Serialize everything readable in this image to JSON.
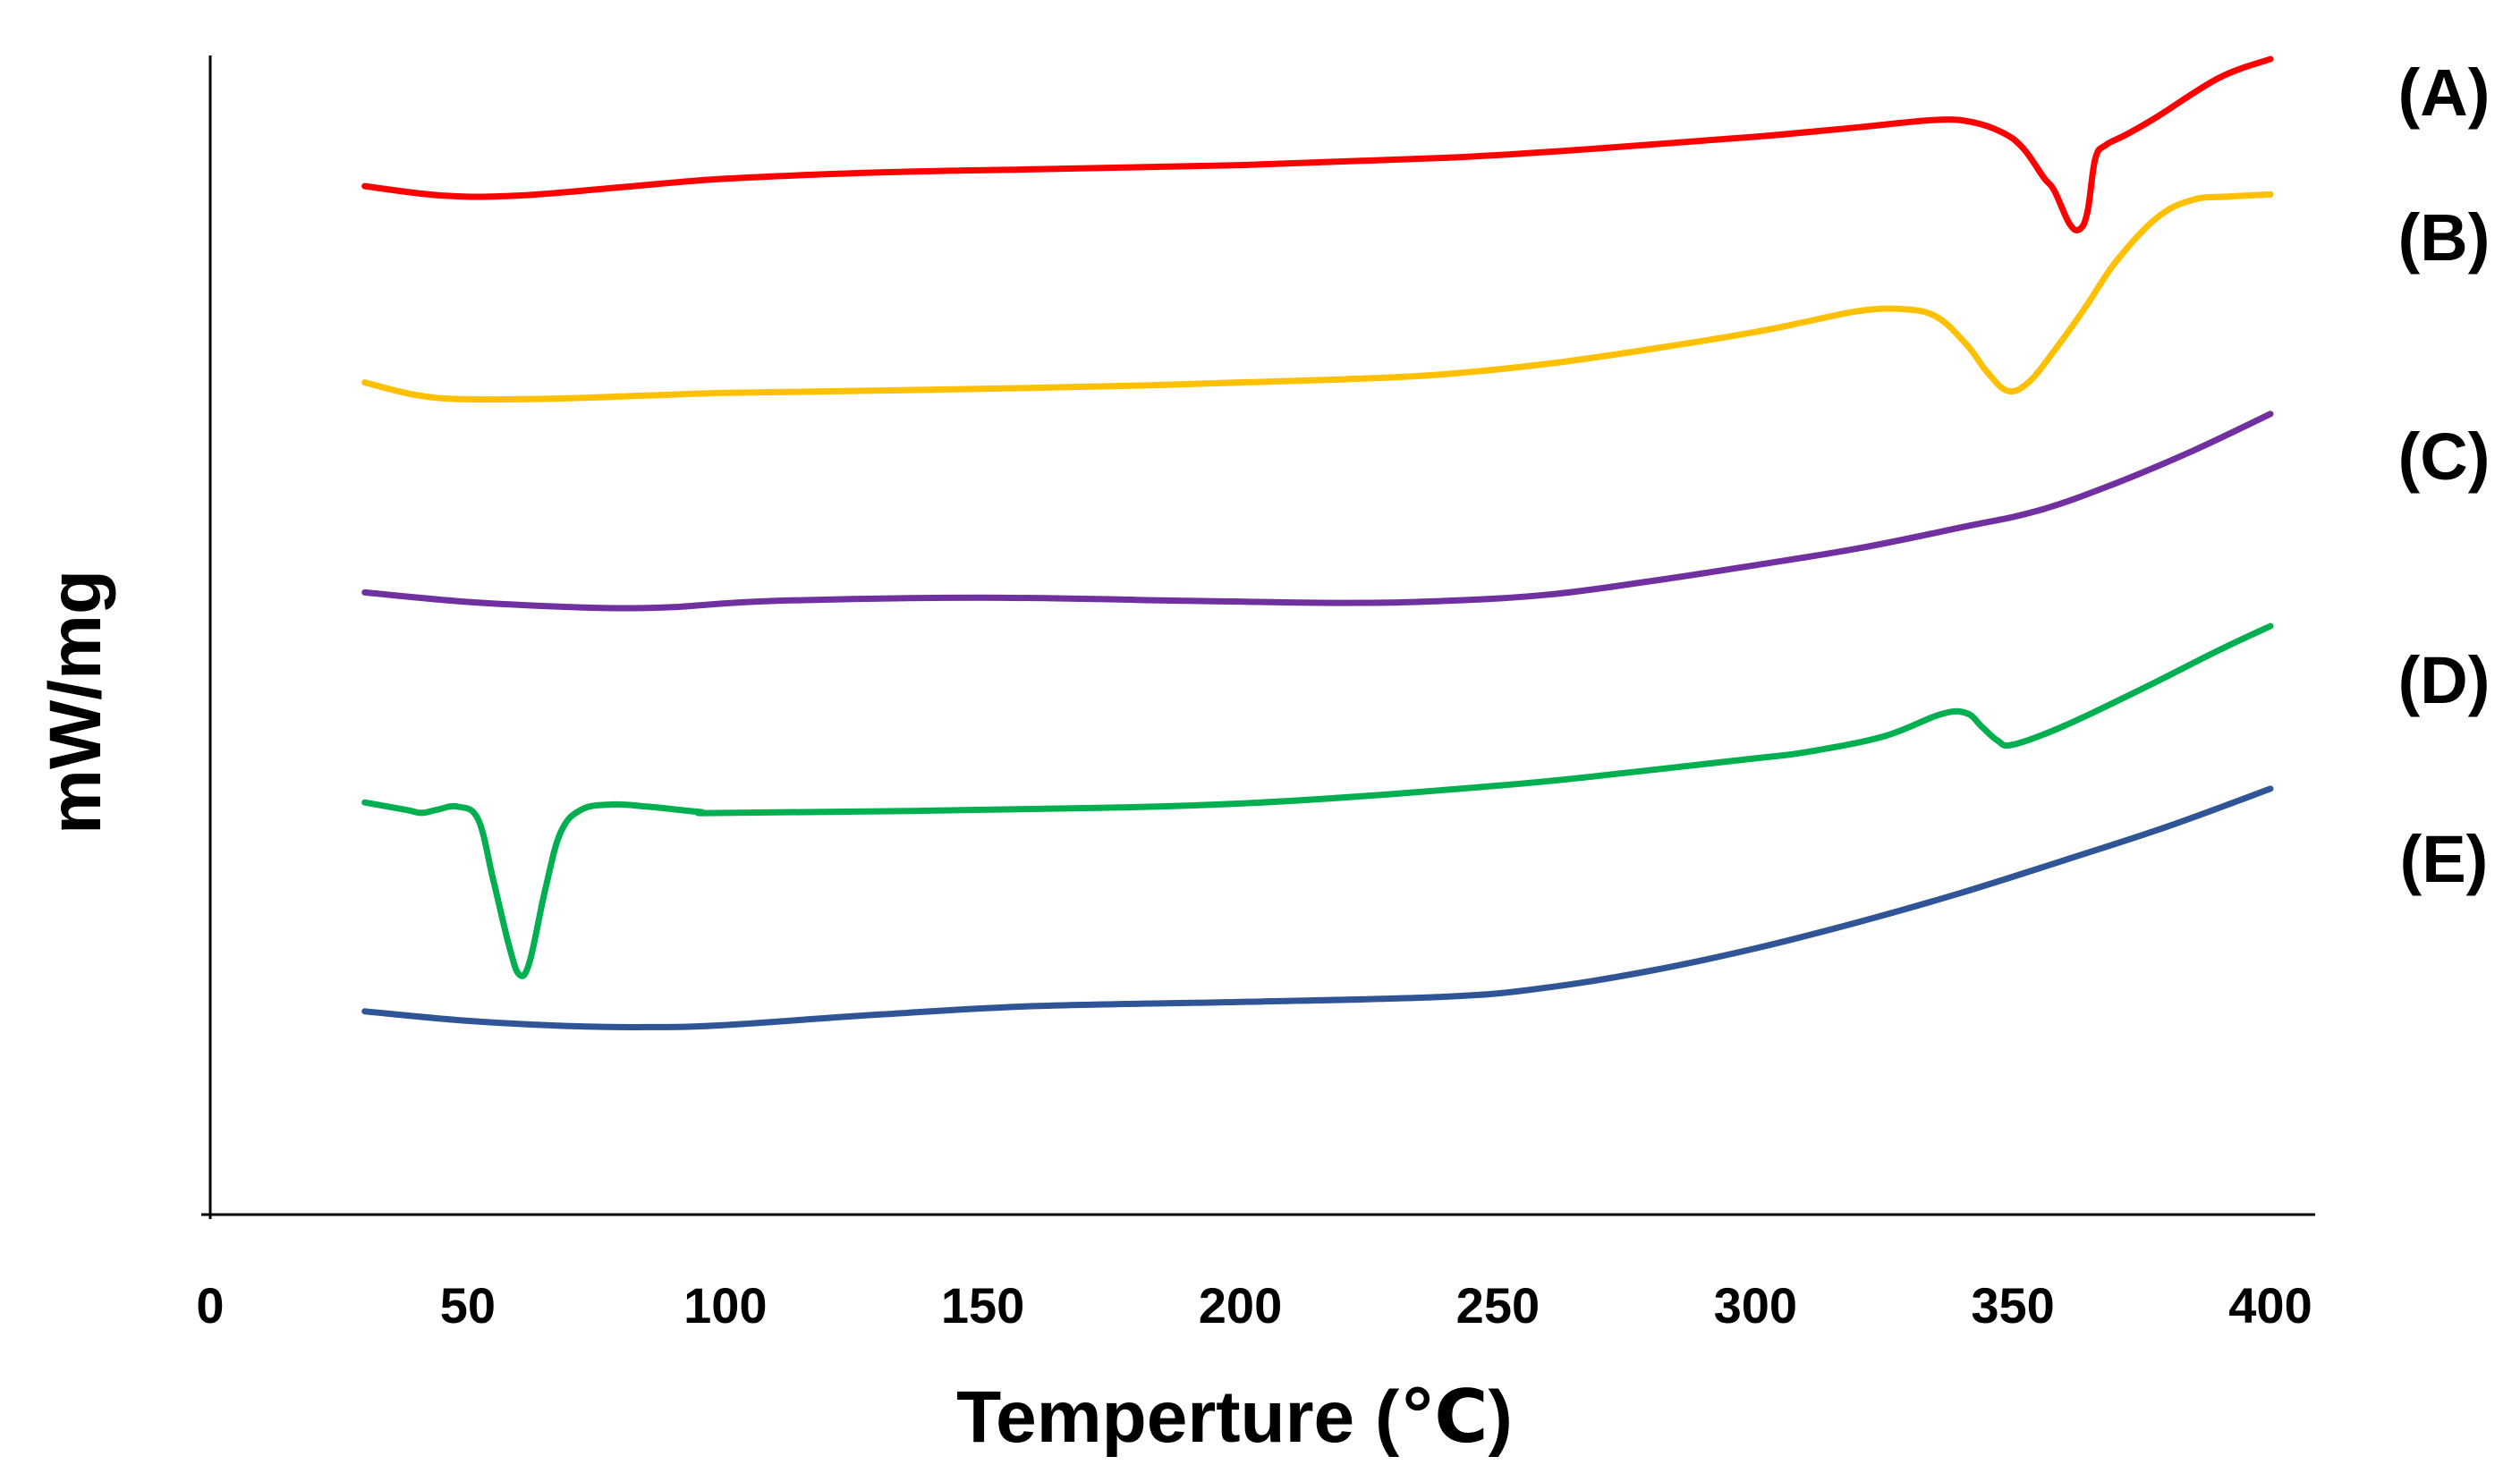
{
  "chart_data": {
    "type": "line",
    "title": "",
    "xlabel": "Temperture (℃)",
    "ylabel": "mW/mg",
    "xlim": [
      0,
      400
    ],
    "xticks": [
      0,
      50,
      100,
      150,
      200,
      250,
      300,
      350,
      400
    ],
    "xtick_labels": [
      "0",
      "50",
      "100",
      "150",
      "200",
      "250",
      "300",
      "350",
      "400"
    ],
    "ylim": [
      0,
      100
    ],
    "grid": false,
    "legend_position": "right",
    "y_ticks_shown": false,
    "series": [
      {
        "name": "(A)",
        "color": "#FF0000",
        "x": [
          30,
          45,
          60,
          80,
          100,
          130,
          160,
          200,
          240,
          270,
          300,
          320,
          335,
          342,
          348,
          352,
          356,
          358,
          361,
          363,
          364.5,
          366,
          368,
          372,
          378,
          390,
          400
        ],
        "y": [
          87.9,
          87.0,
          87.0,
          87.8,
          88.6,
          89.2,
          89.5,
          89.9,
          90.6,
          91.5,
          92.6,
          93.5,
          94.2,
          94.0,
          93.0,
          91.5,
          88.7,
          87.5,
          84.3,
          83.8,
          85.5,
          90.5,
          91.8,
          92.8,
          94.5,
          98.2,
          100.0
        ]
      },
      {
        "name": "(B)",
        "color": "#FFC000",
        "x": [
          30,
          40,
          50,
          70,
          100,
          140,
          180,
          220,
          240,
          260,
          280,
          300,
          310,
          320,
          328,
          335,
          341,
          345,
          349,
          353,
          358,
          364,
          370,
          378,
          385,
          392,
          400
        ],
        "y": [
          69.2,
          68.0,
          67.6,
          67.7,
          68.2,
          68.5,
          68.9,
          69.5,
          70.0,
          71.0,
          72.4,
          74.0,
          75.0,
          76.0,
          76.2,
          75.5,
          72.8,
          70.2,
          68.4,
          69.2,
          72.2,
          76.3,
          80.7,
          84.9,
          86.6,
          86.9,
          87.1
        ]
      },
      {
        "name": "(C)",
        "color": "#7030A0",
        "x": [
          30,
          50,
          70,
          80,
          90,
          110,
          150,
          190,
          220,
          240,
          260,
          280,
          300,
          320,
          340,
          355,
          370,
          385,
          400
        ],
        "y": [
          49.2,
          48.3,
          47.8,
          47.7,
          47.8,
          48.4,
          48.7,
          48.4,
          48.2,
          48.4,
          49.0,
          50.3,
          51.8,
          53.4,
          55.4,
          57.0,
          59.6,
          62.7,
          66.2
        ]
      },
      {
        "name": "(D)",
        "color": "#00B050",
        "x": [
          30,
          38,
          41,
          44,
          48,
          52,
          55,
          58,
          60,
          62,
          65,
          68,
          72,
          78,
          85,
          95,
          100,
          150,
          200,
          250,
          280,
          300,
          310,
          325,
          336,
          341,
          344,
          347,
          350,
          360,
          375,
          390,
          400
        ],
        "y": [
          29.2,
          28.5,
          28.2,
          28.5,
          28.8,
          27.6,
          21.7,
          15.6,
          12.8,
          14.0,
          20.8,
          26.3,
          28.5,
          29.0,
          28.8,
          28.3,
          28.2,
          28.5,
          29.1,
          30.8,
          32.3,
          33.4,
          34.0,
          35.5,
          37.6,
          37.7,
          36.4,
          35.1,
          34.7,
          36.5,
          40.0,
          43.7,
          46.0
        ]
      },
      {
        "name": "(E)",
        "color": "#2F5597",
        "x": [
          30,
          50,
          70,
          85,
          100,
          130,
          160,
          200,
          240,
          260,
          280,
          300,
          320,
          340,
          360,
          380,
          400
        ],
        "y": [
          9.3,
          8.4,
          7.9,
          7.8,
          8.0,
          9.0,
          9.8,
          10.2,
          10.7,
          11.6,
          13.2,
          15.3,
          17.8,
          20.6,
          23.7,
          26.9,
          30.5
        ]
      }
    ]
  }
}
